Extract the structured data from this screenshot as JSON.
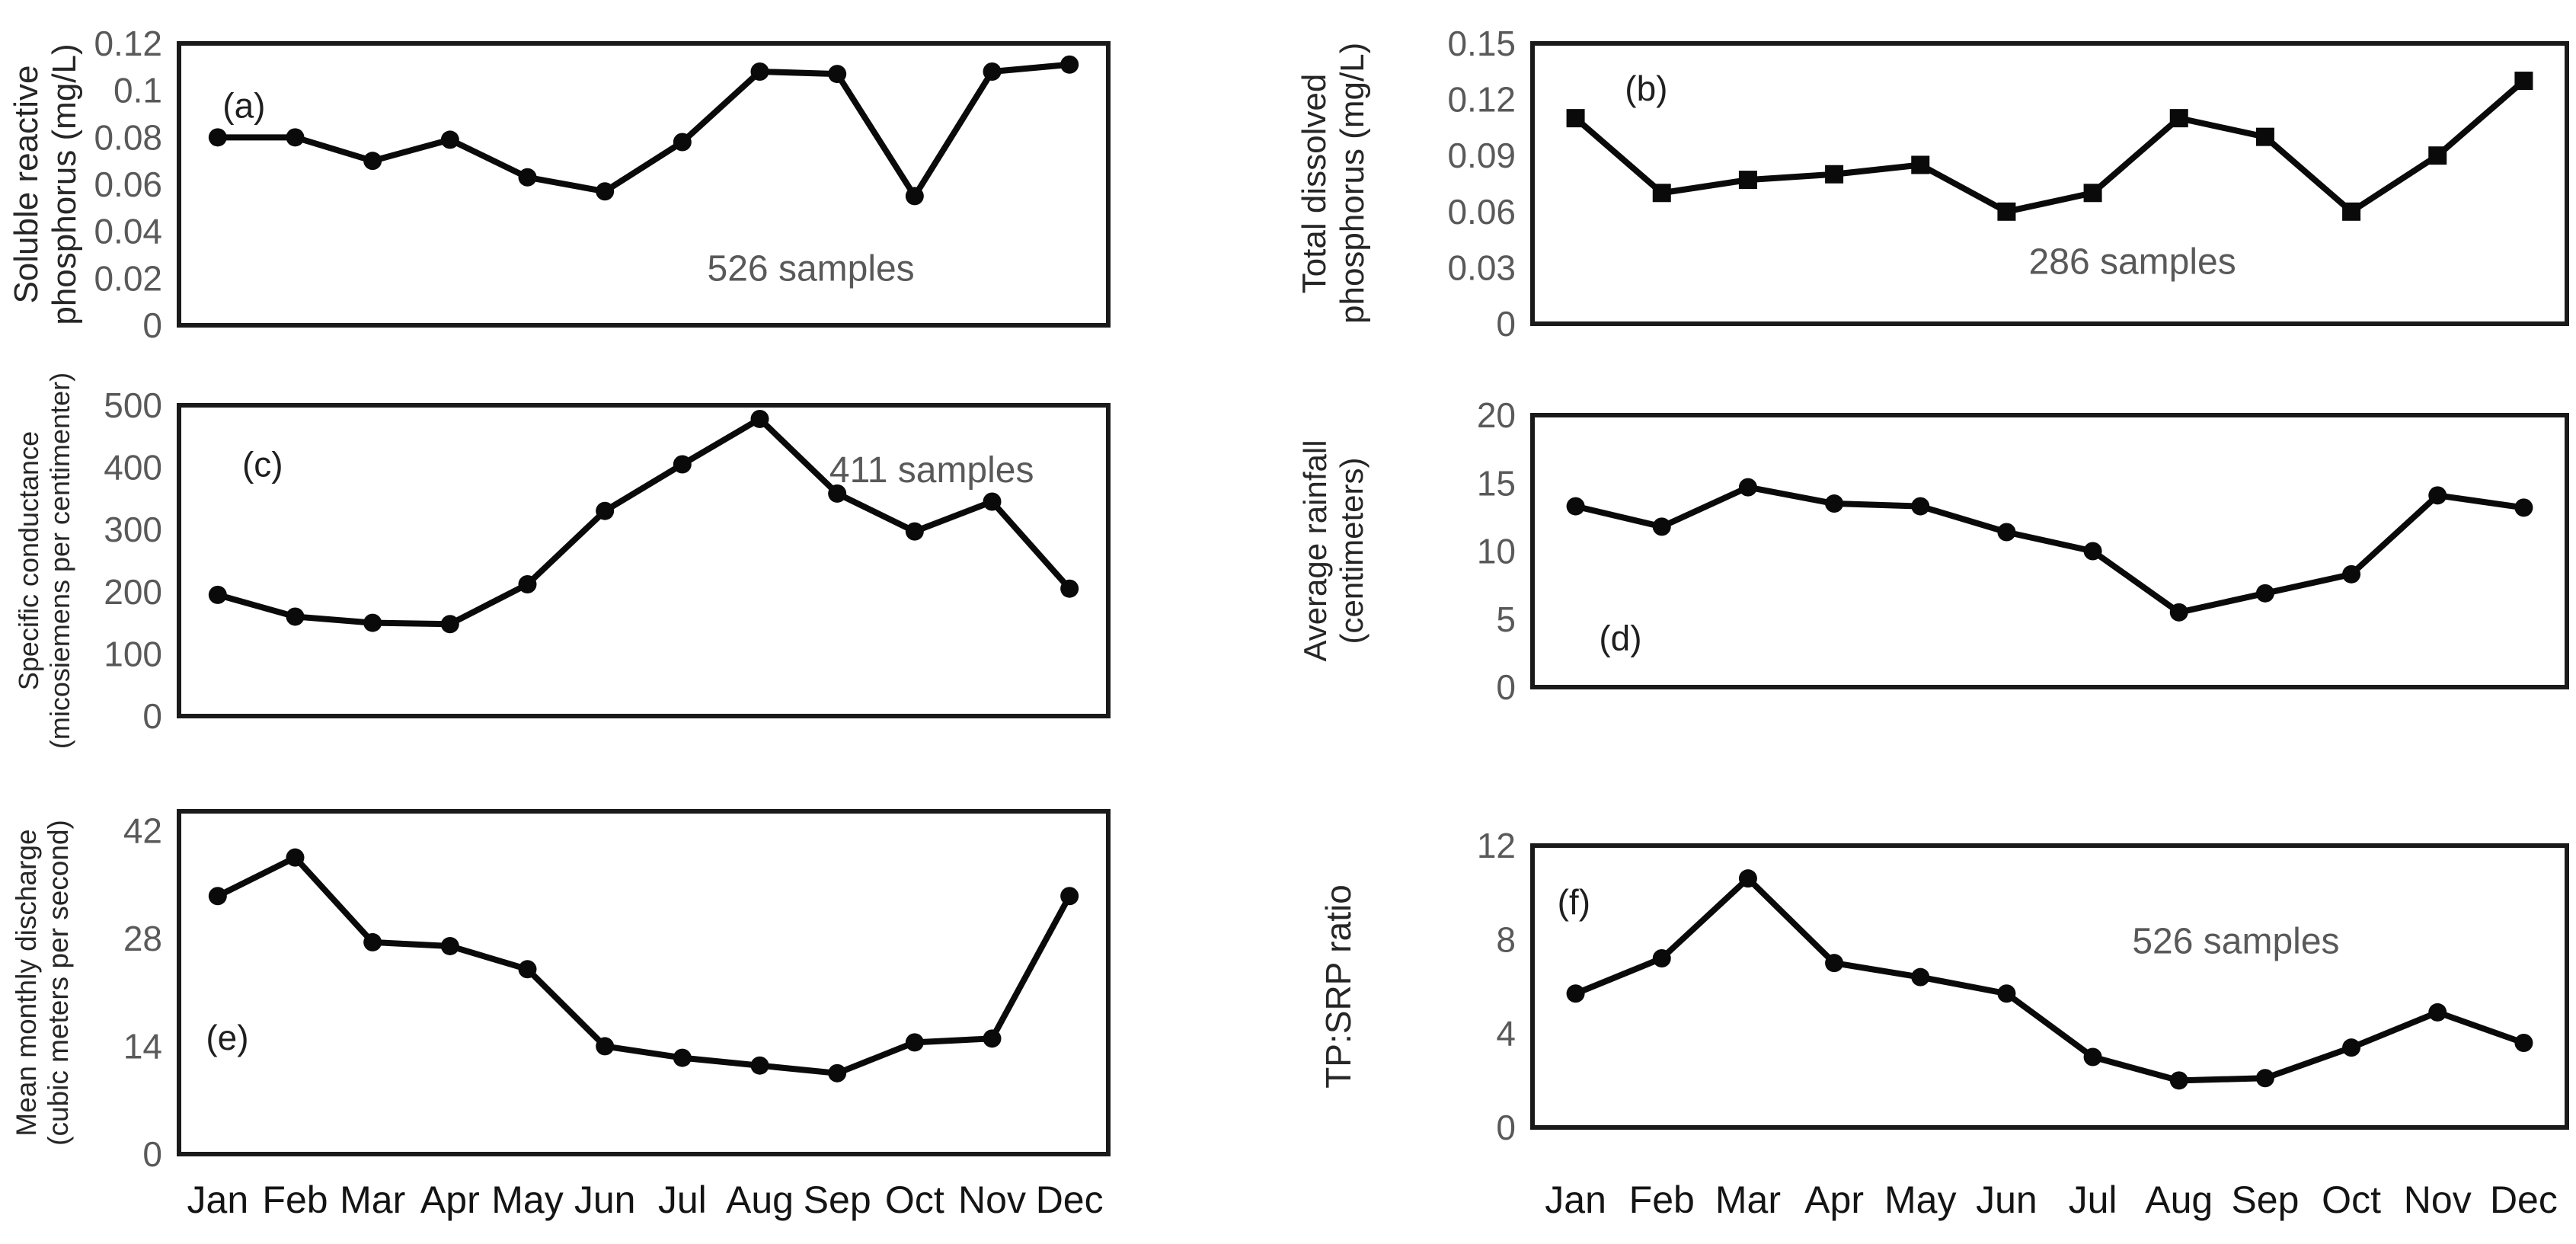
{
  "chart_data": {
    "type": "line",
    "description": "Six-panel monthly line chart figure (a-f)",
    "categories": [
      "Jan",
      "Feb",
      "Mar",
      "Apr",
      "May",
      "Jun",
      "Jul",
      "Aug",
      "Sep",
      "Oct",
      "Nov",
      "Dec"
    ],
    "line_color": "#0a0a0a",
    "annotation_color": "#595959",
    "panels": [
      {
        "id": "a",
        "label": "(a)",
        "ylabel_line1": "Soluble reactive",
        "ylabel_line2": "phosphorus (mg/L)",
        "yticks": [
          0,
          0.02,
          0.04,
          0.06,
          0.08,
          0.1,
          0.12
        ],
        "ylim": [
          0,
          0.12
        ],
        "marker": "circle",
        "values": [
          0.08,
          0.08,
          0.07,
          0.079,
          0.063,
          0.057,
          0.078,
          0.108,
          0.107,
          0.055,
          0.108,
          0.111
        ],
        "annotation": "526 samples",
        "annotation_x": 0.68,
        "annotation_y": 0.8,
        "label_x": 0.07,
        "label_y": 0.22,
        "show_months": false
      },
      {
        "id": "b",
        "label": "(b)",
        "ylabel_line1": "Total dissolved",
        "ylabel_line2": "phosphorus (mg/L)",
        "yticks": [
          0,
          0.03,
          0.06,
          0.09,
          0.12,
          0.15
        ],
        "ylim": [
          0,
          0.15
        ],
        "marker": "square",
        "values": [
          0.11,
          0.07,
          0.077,
          0.08,
          0.085,
          0.06,
          0.07,
          0.11,
          0.1,
          0.06,
          0.09,
          0.13
        ],
        "annotation": "286 samples",
        "annotation_x": 0.58,
        "annotation_y": 0.78,
        "label_x": 0.11,
        "label_y": 0.16,
        "show_months": false
      },
      {
        "id": "c",
        "label": "(c)",
        "ylabel_line1": "Specific conductance",
        "ylabel_line2": "(micosiemens per centimenter)",
        "yticks": [
          0,
          100,
          200,
          300,
          400,
          500
        ],
        "ylim": [
          0,
          500
        ],
        "marker": "circle",
        "values": [
          195,
          160,
          150,
          148,
          212,
          330,
          405,
          478,
          358,
          297,
          345,
          205
        ],
        "annotation": "411 samples",
        "annotation_x": 0.81,
        "annotation_y": 0.21,
        "label_x": 0.09,
        "label_y": 0.19,
        "show_months": false
      },
      {
        "id": "d",
        "label": "(d)",
        "ylabel_line1": "Average rainfall",
        "ylabel_line2": "(centimeters)",
        "yticks": [
          0,
          5,
          10,
          15,
          20
        ],
        "ylim": [
          0,
          20
        ],
        "marker": "circle",
        "values": [
          13.3,
          11.8,
          14.7,
          13.5,
          13.3,
          11.4,
          10,
          5.5,
          6.9,
          8.3,
          14.1,
          13.2
        ],
        "annotation": null,
        "annotation_x": 0,
        "annotation_y": 0,
        "label_x": 0.085,
        "label_y": 0.82,
        "show_months": false
      },
      {
        "id": "e",
        "label": "(e)",
        "ylabel_line1": "Mean monthly discharge",
        "ylabel_line2": "(cubic meters per second)",
        "yticks": [
          0,
          14,
          28,
          42
        ],
        "ylim": [
          0,
          44.5
        ],
        "marker": "circle",
        "values": [
          33.5,
          38.5,
          27.5,
          27,
          24,
          14,
          12.5,
          11.5,
          10.5,
          14.5,
          15,
          33.5
        ],
        "annotation": null,
        "annotation_x": 0,
        "annotation_y": 0,
        "label_x": 0.052,
        "label_y": 0.66,
        "show_months": true
      },
      {
        "id": "f",
        "label": "(f)",
        "ylabel_line1": "TP:SRP ratio",
        "ylabel_line2": "",
        "yticks": [
          0,
          4,
          8,
          12
        ],
        "ylim": [
          0,
          12
        ],
        "marker": "circle",
        "values": [
          5.7,
          7.2,
          10.6,
          7.0,
          6.4,
          5.7,
          3.0,
          2.0,
          2.1,
          3.4,
          4.9,
          3.6
        ],
        "annotation": "526 samples",
        "annotation_x": 0.68,
        "annotation_y": 0.34,
        "label_x": 0.04,
        "label_y": 0.2,
        "show_months": true
      }
    ]
  }
}
